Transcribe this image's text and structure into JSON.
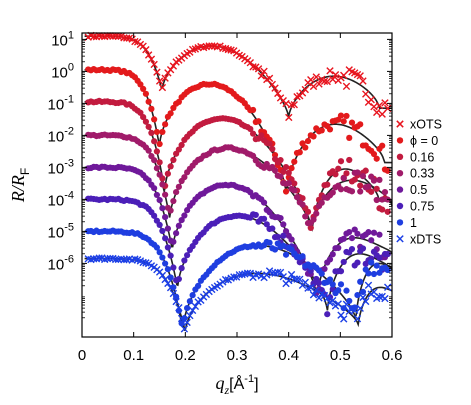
{
  "chart_data": {
    "type": "scatter",
    "title": "",
    "xlabel": "q_z [Å^-1]",
    "ylabel": "R/R_F",
    "xlim": [
      0,
      0.6
    ],
    "ylim_log10": [
      -8.3,
      1.2
    ],
    "y_scale": "log",
    "grid": false,
    "legend_position": "right",
    "x_ticks": [
      "0",
      "0.1",
      "0.2",
      "0.3",
      "0.4",
      "0.5",
      "0.6"
    ],
    "y_ticks": [
      {
        "exp": 1,
        "base": "10",
        "sup": "1"
      },
      {
        "exp": 0,
        "base": "10",
        "sup": "0"
      },
      {
        "exp": -1,
        "base": "10",
        "sup": "-1"
      },
      {
        "exp": -2,
        "base": "10",
        "sup": "-2"
      },
      {
        "exp": -3,
        "base": "10",
        "sup": "-3"
      },
      {
        "exp": -4,
        "base": "10",
        "sup": "-4"
      },
      {
        "exp": -5,
        "base": "10",
        "sup": "-5"
      },
      {
        "exp": -6,
        "base": "10",
        "sup": "-6"
      }
    ],
    "fit_color": "#222222",
    "series": [
      {
        "name": "xOTS",
        "marker": "x",
        "color": "#e8141e",
        "offset": 1.1,
        "min1_q": 0.155,
        "max1_logdrop": 0.25,
        "min2_q": 0.4,
        "min1_depth": 1.7,
        "min2_depth": 1.3,
        "max2_logdrop": 1.25,
        "min3_q": 0.575,
        "min3_depth": 1.0
      },
      {
        "name": "ϕ = 0",
        "marker": "o",
        "color": "#e31a1c",
        "offset": 0.05,
        "min1_q": 0.15,
        "max1_logdrop": 0.45,
        "min2_q": 0.395,
        "min1_depth": 2.4,
        "min2_depth": 2.2,
        "max2_logdrop": 1.7,
        "min3_q": 0.585,
        "min3_depth": 1.2
      },
      {
        "name": "0.16",
        "marker": "o",
        "color": "#c21b3f",
        "offset": -0.95,
        "min1_q": 0.16,
        "max1_logdrop": 0.5,
        "min2_q": 0.445,
        "min1_depth": 2.8,
        "min2_depth": 2.0,
        "max2_logdrop": 2.1,
        "min3_q": 0.575,
        "min3_depth": 1.0
      },
      {
        "name": "0.33",
        "marker": "o",
        "color": "#a01b6a",
        "offset": -2.0,
        "min1_q": 0.17,
        "max1_logdrop": 0.45,
        "min2_q": 0.445,
        "min1_depth": 2.6,
        "min2_depth": 1.6,
        "max2_logdrop": 1.4,
        "min3_q": 0.6,
        "min3_depth": 0.8
      },
      {
        "name": "0.5",
        "marker": "o",
        "color": "#6f199a",
        "offset": -3.0,
        "min1_q": 0.175,
        "max1_logdrop": 0.55,
        "min2_q": 0.455,
        "min1_depth": 2.6,
        "min2_depth": 1.9,
        "max2_logdrop": 2.2,
        "min3_q": 0.6,
        "min3_depth": 0.5
      },
      {
        "name": "0.75",
        "marker": "o",
        "color": "#4b1fb8",
        "offset": -4.0,
        "min1_q": 0.185,
        "max1_logdrop": 0.7,
        "min2_q": 0.475,
        "min1_depth": 2.8,
        "min2_depth": 1.8,
        "max2_logdrop": 1.7,
        "min3_q": 0.6,
        "min3_depth": 0.5
      },
      {
        "name": "1",
        "marker": "o",
        "color": "#1f3ee0",
        "offset": -5.0,
        "min1_q": 0.195,
        "max1_logdrop": 0.9,
        "min2_q": 0.53,
        "min1_depth": 3.1,
        "min2_depth": 1.8,
        "max2_logdrop": 1.0,
        "min3_q": 0.62,
        "min3_depth": 0.3
      },
      {
        "name": "xDTS",
        "marker": "x",
        "color": "#1c3fe6",
        "offset": -5.85,
        "min1_q": 0.2,
        "max1_logdrop": 1.1,
        "min2_q": 0.535,
        "min1_depth": 2.3,
        "min2_depth": 1.2,
        "max2_logdrop": 0.9,
        "min3_q": 0.62,
        "min3_depth": 0.3
      }
    ]
  }
}
